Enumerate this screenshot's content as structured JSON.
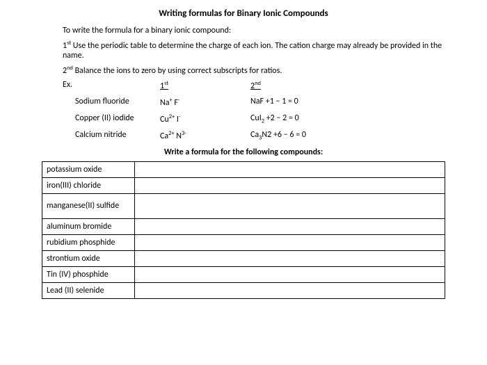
{
  "title": "Writing formulas for Binary Ionic Compounds",
  "intro": "To write the formula for a binary ionic compound:",
  "step1_pre": "1",
  "step1_sup": "st",
  "step1_text": " Use the periodic table to determine the charge of each ion. The cation charge may already be provided in the name.",
  "step2_pre": "2",
  "step2_sup": "nd",
  "step2_text": " Balance the ions to zero by using correct subscripts for ratios.",
  "ex_label": "Ex.",
  "head1_pre": "1",
  "head1_sup": "st",
  "head2_pre": "2",
  "head2_sup": "nd",
  "ex1_name": "Sodium fluoride",
  "ex1_first_a": "Na",
  "ex1_first_a_sup": "+",
  "ex1_first_gap": "  ",
  "ex1_first_b": "F",
  "ex1_first_b_sup": "-",
  "ex1_second_f": "NaF",
  "ex1_second_calc": "   +1 − 1 = 0",
  "ex2_name": "Copper (II) iodide",
  "ex2_first_a": "Cu",
  "ex2_first_a_sup": "2+",
  "ex2_first_gap": "  ",
  "ex2_first_b": "I",
  "ex2_first_b_sup": "-",
  "ex2_second_f_a": "CuI",
  "ex2_second_f_sub": "2",
  "ex2_second_calc": "   +2 − 2 = 0",
  "ex3_name": "Calcium nitride",
  "ex3_first_a": "Ca",
  "ex3_first_a_sup": "2+",
  "ex3_first_gap": " ",
  "ex3_first_b": "N",
  "ex3_first_b_sup": "3-",
  "ex3_second_f_a": "Ca",
  "ex3_second_f_sub1": "3",
  "ex3_second_f_b": "N2",
  "ex3_second_calc": "  +6 − 6 = 0",
  "subtitle": "Write a formula for the following compounds:",
  "rows": [
    {
      "name": "potassium oxide",
      "tall": false
    },
    {
      "name": "iron(III) chloride",
      "tall": false
    },
    {
      "name": "manganese(II) sulfide",
      "tall": true
    },
    {
      "name": "aluminum bromide",
      "tall": false
    },
    {
      "name": "rubidium phosphide",
      "tall": false
    },
    {
      "name": "strontium oxide",
      "tall": false
    },
    {
      "name": "Tin (IV) phosphide",
      "tall": false
    },
    {
      "name": "Lead (II) selenide",
      "tall": false
    }
  ]
}
